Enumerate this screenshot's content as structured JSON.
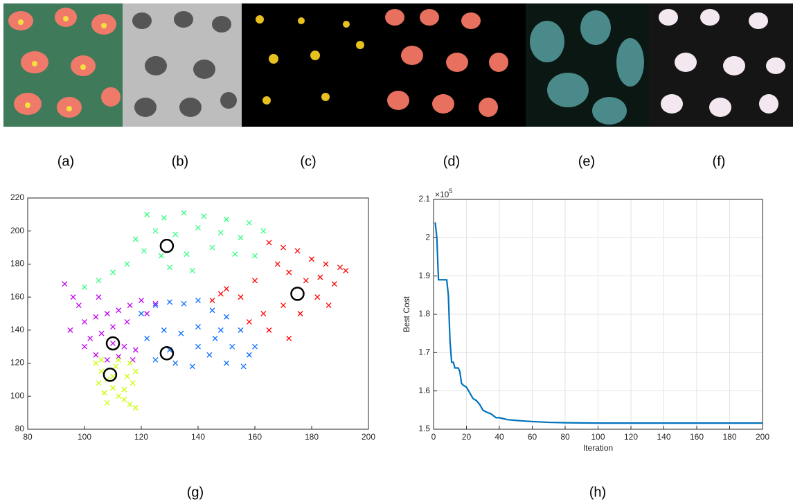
{
  "panels": [
    "(a)",
    "(b)",
    "(c)",
    "(d)",
    "(e)",
    "(f)"
  ],
  "chart_data": [
    {
      "type": "scatter",
      "caption": "(g)",
      "grid": false,
      "xlim": [
        80,
        200
      ],
      "xticks": [
        80,
        100,
        120,
        140,
        160,
        180,
        200
      ],
      "ylim": [
        80,
        220
      ],
      "yticks": [
        80,
        100,
        120,
        140,
        160,
        180,
        200,
        220
      ],
      "series": [
        {
          "marker": "x",
          "color": "#33ff80",
          "x": [
            122,
            128,
            135,
            142,
            150,
            158,
            163,
            125,
            132,
            140,
            148,
            155,
            118,
            121,
            127,
            136,
            145,
            153,
            110,
            105,
            115,
            130,
            138,
            160,
            100
          ],
          "values": [
            210,
            208,
            211,
            209,
            207,
            205,
            200,
            200,
            198,
            202,
            199,
            196,
            195,
            188,
            185,
            186,
            190,
            186,
            175,
            170,
            180,
            178,
            176,
            185,
            166
          ]
        },
        {
          "marker": "x",
          "color": "#ff0000",
          "x": [
            165,
            170,
            175,
            180,
            185,
            190,
            192,
            168,
            172,
            178,
            183,
            188,
            150,
            155,
            160,
            145,
            163,
            170,
            176,
            182,
            158,
            165,
            172,
            148,
            186
          ],
          "values": [
            193,
            190,
            188,
            183,
            180,
            178,
            176,
            180,
            175,
            170,
            172,
            168,
            165,
            160,
            170,
            158,
            150,
            155,
            150,
            160,
            145,
            140,
            135,
            162,
            155
          ]
        },
        {
          "marker": "x",
          "color": "#c000f0",
          "x": [
            95,
            100,
            104,
            108,
            112,
            116,
            120,
            102,
            106,
            110,
            114,
            118,
            98,
            104,
            108,
            112,
            117,
            93,
            96,
            122,
            125,
            100,
            110,
            115,
            105
          ],
          "values": [
            140,
            145,
            148,
            150,
            152,
            155,
            158,
            135,
            138,
            132,
            130,
            128,
            155,
            125,
            122,
            124,
            122,
            168,
            160,
            150,
            156,
            130,
            142,
            145,
            160
          ]
        },
        {
          "marker": "x",
          "color": "#0a6cff",
          "x": [
            120,
            125,
            130,
            135,
            140,
            145,
            150,
            155,
            160,
            122,
            128,
            134,
            140,
            146,
            152,
            158,
            125,
            132,
            138,
            144,
            150,
            156,
            140,
            130,
            148
          ],
          "values": [
            150,
            155,
            157,
            156,
            158,
            152,
            148,
            140,
            130,
            135,
            140,
            138,
            142,
            135,
            130,
            125,
            122,
            120,
            118,
            125,
            120,
            118,
            130,
            128,
            140
          ]
        },
        {
          "marker": "x",
          "color": "#c8ff00",
          "x": [
            104,
            106,
            108,
            110,
            112,
            114,
            116,
            118,
            105,
            107,
            111,
            115,
            117,
            108,
            112,
            116,
            118,
            110,
            114,
            106
          ],
          "values": [
            120,
            115,
            110,
            105,
            100,
            98,
            95,
            93,
            108,
            102,
            118,
            112,
            108,
            96,
            122,
            120,
            115,
            112,
            104,
            122
          ]
        },
        {
          "marker": "o",
          "color": "#000000",
          "x": [
            129,
            175,
            110,
            129,
            109
          ],
          "values": [
            191,
            162,
            132,
            126,
            113
          ]
        }
      ]
    },
    {
      "type": "line",
      "caption": "(h)",
      "grid": true,
      "xlabel": "Iteration",
      "ylabel": "Best Cost",
      "y_scale_base": "×10",
      "y_scale_exponent": "5",
      "xlim": [
        0,
        200
      ],
      "xticks": [
        0,
        20,
        40,
        60,
        80,
        100,
        120,
        140,
        160,
        180,
        200
      ],
      "ylim": [
        1.5,
        2.1
      ],
      "yticks": [
        1.5,
        1.6,
        1.7,
        1.8,
        1.9,
        2,
        2.1
      ],
      "x": [
        1,
        2,
        3,
        5,
        8,
        9,
        10,
        11,
        12,
        13,
        15,
        16,
        17,
        18,
        20,
        22,
        24,
        26,
        28,
        30,
        32,
        35,
        38,
        40,
        45,
        50,
        60,
        70,
        80,
        100,
        120,
        150,
        200
      ],
      "series": [
        {
          "color": "#0072bd",
          "values": [
            2.04,
            2.0,
            1.89,
            1.89,
            1.89,
            1.85,
            1.73,
            1.675,
            1.675,
            1.66,
            1.66,
            1.65,
            1.62,
            1.615,
            1.61,
            1.595,
            1.58,
            1.575,
            1.565,
            1.55,
            1.545,
            1.54,
            1.53,
            1.53,
            1.525,
            1.523,
            1.52,
            1.518,
            1.517,
            1.516,
            1.516,
            1.516,
            1.516
          ]
        }
      ]
    }
  ]
}
